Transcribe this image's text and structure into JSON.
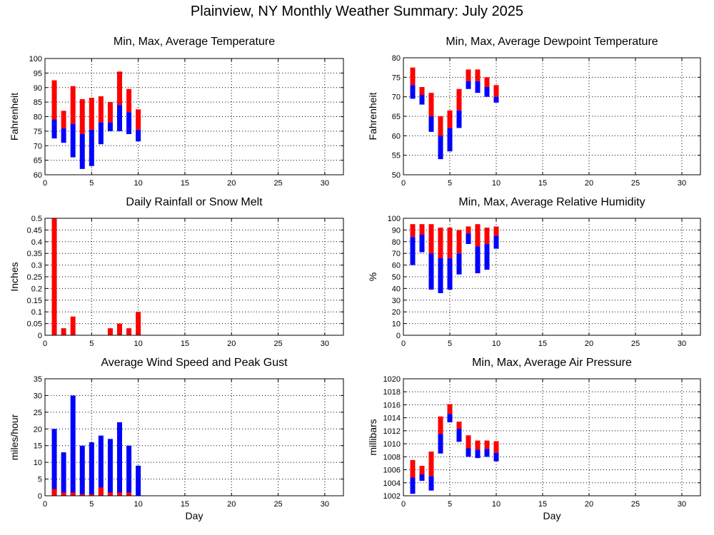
{
  "page": {
    "title": "Plainview, NY Monthly Weather Summary: July 2025"
  },
  "colors": {
    "max_bar": "#ff0000",
    "min_bar": "#0000ff",
    "grid": "#000000"
  },
  "chart_data": [
    {
      "id": "temp",
      "type": "bar",
      "title": "Min, Max, Average Temperature",
      "ylabel": "Fahrenheit",
      "xlabel": "",
      "xlim": [
        0,
        32
      ],
      "ylim": [
        60,
        100
      ],
      "xticks": [
        0,
        5,
        10,
        15,
        20,
        25,
        30
      ],
      "yticks": [
        60,
        65,
        70,
        75,
        80,
        85,
        90,
        95,
        100
      ],
      "style": "range",
      "x": [
        1,
        2,
        3,
        4,
        5,
        6,
        7,
        8,
        9,
        10
      ],
      "series": [
        {
          "key": "min",
          "values": [
            72.5,
            71,
            66,
            62,
            63,
            70.5,
            75,
            75,
            74,
            71.5
          ]
        },
        {
          "key": "avg",
          "values": [
            79,
            76,
            77.5,
            74,
            75.5,
            78,
            78,
            84,
            81.5,
            75.5
          ]
        },
        {
          "key": "max",
          "values": [
            92.5,
            82,
            90.5,
            86,
            86.5,
            87,
            85,
            95.5,
            89.5,
            82.5
          ]
        }
      ]
    },
    {
      "id": "dewpoint",
      "type": "bar",
      "title": "Min, Max, Average Dewpoint Temperature",
      "ylabel": "Fahrenheit",
      "xlabel": "",
      "xlim": [
        0,
        32
      ],
      "ylim": [
        50,
        80
      ],
      "xticks": [
        0,
        5,
        10,
        15,
        20,
        25,
        30
      ],
      "yticks": [
        50,
        55,
        60,
        65,
        70,
        75,
        80
      ],
      "style": "range",
      "x": [
        1,
        2,
        3,
        4,
        5,
        6,
        7,
        8,
        9,
        10
      ],
      "series": [
        {
          "key": "min",
          "values": [
            69.5,
            68,
            61,
            54,
            56,
            62,
            72,
            71,
            70,
            68.5
          ]
        },
        {
          "key": "avg",
          "values": [
            73,
            70.5,
            65,
            60,
            62,
            66.5,
            74,
            74,
            72.5,
            70
          ]
        },
        {
          "key": "max",
          "values": [
            77.5,
            72.5,
            71,
            65,
            66.5,
            72,
            77,
            77,
            75,
            73
          ]
        }
      ]
    },
    {
      "id": "rain",
      "type": "bar",
      "title": "Daily Rainfall or Snow Melt",
      "ylabel": "Inches",
      "xlabel": "",
      "xlim": [
        0,
        32
      ],
      "ylim": [
        0,
        0.5
      ],
      "xticks": [
        0,
        5,
        10,
        15,
        20,
        25,
        30
      ],
      "yticks": [
        0,
        0.05,
        0.1,
        0.15,
        0.2,
        0.25,
        0.3,
        0.35,
        0.4,
        0.45,
        0.5
      ],
      "style": "single",
      "x": [
        1,
        2,
        3,
        4,
        5,
        6,
        7,
        8,
        9,
        10
      ],
      "series": [
        {
          "key": "rain",
          "values": [
            0.5,
            0.03,
            0.08,
            0,
            0,
            0,
            0.03,
            0.05,
            0.03,
            0.1
          ]
        }
      ]
    },
    {
      "id": "humidity",
      "type": "bar",
      "title": "Min, Max, Average Relative Humidity",
      "ylabel": "%",
      "xlabel": "",
      "xlim": [
        0,
        32
      ],
      "ylim": [
        0,
        100
      ],
      "xticks": [
        0,
        5,
        10,
        15,
        20,
        25,
        30
      ],
      "yticks": [
        0,
        10,
        20,
        30,
        40,
        50,
        60,
        70,
        80,
        90,
        100
      ],
      "style": "range",
      "x": [
        1,
        2,
        3,
        4,
        5,
        6,
        7,
        8,
        9,
        10
      ],
      "series": [
        {
          "key": "min",
          "values": [
            60,
            71,
            39,
            36,
            39,
            52,
            78,
            53,
            56,
            74
          ]
        },
        {
          "key": "avg",
          "values": [
            84,
            86,
            70,
            66,
            66,
            70,
            87,
            76,
            78,
            85
          ]
        },
        {
          "key": "max",
          "values": [
            95,
            95,
            95,
            92,
            92,
            90,
            93,
            95,
            92,
            93
          ]
        }
      ]
    },
    {
      "id": "wind",
      "type": "bar",
      "title": "Average Wind Speed and Peak Gust",
      "ylabel": "miles/hour",
      "xlabel": "Day",
      "xlim": [
        0,
        32
      ],
      "ylim": [
        0,
        35
      ],
      "xticks": [
        0,
        5,
        10,
        15,
        20,
        25,
        30
      ],
      "yticks": [
        0,
        5,
        10,
        15,
        20,
        25,
        30,
        35
      ],
      "style": "stack",
      "x": [
        1,
        2,
        3,
        4,
        5,
        6,
        7,
        8,
        9,
        10
      ],
      "series": [
        {
          "key": "avg_speed",
          "values": [
            2,
            1,
            1,
            0.5,
            0.5,
            2.5,
            1,
            1,
            1,
            0
          ]
        },
        {
          "key": "peak_gust",
          "values": [
            20,
            13,
            30,
            15,
            16,
            18,
            17,
            22,
            15,
            9
          ]
        }
      ]
    },
    {
      "id": "pressure",
      "type": "bar",
      "title": "Min, Max, Average Air Pressure",
      "ylabel": "millibars",
      "xlabel": "Day",
      "xlim": [
        0,
        32
      ],
      "ylim": [
        1002,
        1020
      ],
      "xticks": [
        0,
        5,
        10,
        15,
        20,
        25,
        30
      ],
      "yticks": [
        1002,
        1004,
        1006,
        1008,
        1010,
        1012,
        1014,
        1016,
        1018,
        1020
      ],
      "style": "range",
      "x": [
        1,
        2,
        3,
        4,
        5,
        6,
        7,
        8,
        9,
        10
      ],
      "series": [
        {
          "key": "min",
          "values": [
            1002.3,
            1004.3,
            1002.8,
            1008.5,
            1013.3,
            1010.3,
            1008,
            1007.8,
            1008,
            1007.3
          ]
        },
        {
          "key": "avg",
          "values": [
            1004.8,
            1005.3,
            1005,
            1011.5,
            1014.6,
            1012.3,
            1009.3,
            1009.1,
            1009.2,
            1008.6
          ]
        },
        {
          "key": "max",
          "values": [
            1007.5,
            1006.6,
            1008.8,
            1014.2,
            1016.1,
            1013.4,
            1011.3,
            1010.5,
            1010.5,
            1010.4
          ]
        }
      ]
    }
  ]
}
